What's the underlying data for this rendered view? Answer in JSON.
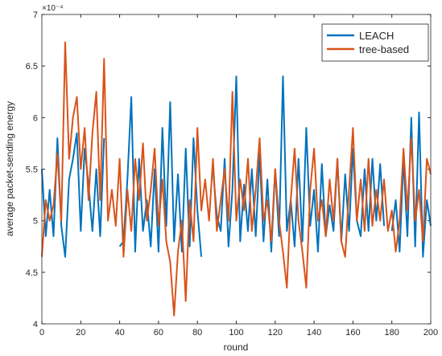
{
  "chart_data": {
    "type": "line",
    "xlabel": "round",
    "ylabel": "average packet-sending energy",
    "y_multiplier": "×10⁻⁴",
    "xlim": [
      0,
      200
    ],
    "xticks": [
      0,
      20,
      40,
      60,
      80,
      100,
      120,
      140,
      160,
      180,
      200
    ],
    "ylim": [
      4,
      7
    ],
    "yticks": [
      4,
      4.5,
      5,
      5.5,
      6,
      6.5,
      7
    ],
    "legend": "northeast",
    "x": [
      0,
      2,
      4,
      6,
      8,
      10,
      12,
      14,
      16,
      18,
      20,
      22,
      24,
      26,
      28,
      30,
      32,
      34,
      36,
      38,
      40,
      42,
      44,
      46,
      48,
      50,
      52,
      54,
      56,
      58,
      60,
      62,
      64,
      66,
      68,
      70,
      72,
      74,
      76,
      78,
      80,
      82,
      84,
      86,
      88,
      90,
      92,
      94,
      96,
      98,
      100,
      102,
      104,
      106,
      108,
      110,
      112,
      114,
      116,
      118,
      120,
      122,
      124,
      126,
      128,
      130,
      132,
      134,
      136,
      138,
      140,
      142,
      144,
      146,
      148,
      150,
      152,
      154,
      156,
      158,
      160,
      162,
      164,
      166,
      168,
      170,
      172,
      174,
      176,
      178,
      180,
      182,
      184,
      186,
      188,
      190,
      192,
      194,
      196,
      198,
      200
    ],
    "series": [
      {
        "name": "LEACH",
        "color": "#0072BD",
        "values": [
          5.5,
          4.85,
          5.3,
          4.85,
          5.8,
          4.95,
          4.65,
          5.4,
          5.6,
          5.85,
          4.9,
          5.7,
          5.35,
          4.9,
          5.5,
          4.85,
          5.8,
          null,
          null,
          null,
          4.75,
          4.8,
          5.4,
          6.2,
          4.7,
          5.6,
          4.9,
          5.2,
          4.75,
          5.5,
          4.7,
          5.9,
          4.95,
          6.15,
          4.8,
          5.45,
          4.7,
          5.7,
          4.75,
          5.8,
          5.1,
          4.65,
          null,
          null,
          5.5,
          5.05,
          4.9,
          5.6,
          4.75,
          5.3,
          6.4,
          4.8,
          5.35,
          4.9,
          5.5,
          4.85,
          5.65,
          4.8,
          5.4,
          4.7,
          5.5,
          4.85,
          6.4,
          4.9,
          5.2,
          4.75,
          5.6,
          4.8,
          5.9,
          4.95,
          5.3,
          4.7,
          5.55,
          4.85,
          5.15,
          4.9,
          5.6,
          4.8,
          5.45,
          4.9,
          5.7,
          5.0,
          4.85,
          5.5,
          4.9,
          5.6,
          5.0,
          5.55,
          4.95,
          null,
          4.9,
          5.2,
          4.7,
          5.6,
          4.85,
          6.0,
          4.75,
          6.05,
          4.65,
          5.2,
          4.95
        ]
      },
      {
        "name": "tree-based",
        "color": "#D95319",
        "values": [
          4.65,
          5.2,
          5.0,
          5.15,
          5.65,
          5.0,
          6.73,
          5.6,
          6.0,
          6.2,
          5.5,
          5.9,
          5.2,
          5.85,
          6.25,
          5.2,
          6.57,
          5.0,
          5.3,
          4.95,
          5.6,
          4.65,
          5.3,
          4.9,
          5.6,
          5.2,
          5.75,
          5.0,
          5.3,
          5.7,
          4.95,
          5.4,
          4.8,
          4.6,
          4.08,
          4.7,
          5.0,
          4.22,
          5.2,
          4.8,
          5.9,
          5.1,
          5.4,
          5.0,
          5.6,
          4.9,
          5.2,
          5.5,
          5.0,
          6.25,
          5.0,
          5.4,
          5.1,
          5.6,
          4.9,
          5.3,
          5.8,
          5.0,
          5.2,
          4.8,
          5.5,
          5.0,
          4.7,
          4.35,
          5.2,
          5.7,
          5.0,
          4.7,
          4.35,
          5.3,
          5.7,
          5.0,
          5.2,
          4.85,
          5.4,
          5.0,
          5.6,
          4.8,
          4.65,
          5.3,
          5.9,
          5.0,
          5.4,
          4.9,
          5.6,
          4.95,
          5.3,
          5.0,
          5.4,
          4.9,
          5.1,
          4.7,
          5.0,
          5.7,
          5.1,
          5.8,
          5.0,
          5.3,
          4.8,
          5.6,
          5.45
        ]
      }
    ]
  }
}
